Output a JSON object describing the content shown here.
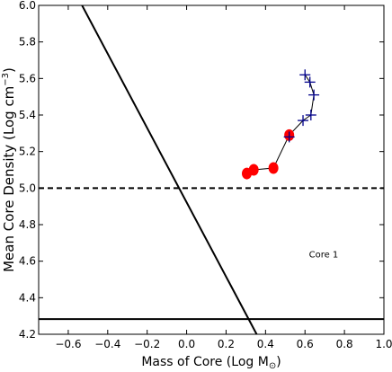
{
  "chart_data": {
    "type": "scatter",
    "title": "",
    "xlabel": "Mass of Core (Log M",
    "xlabel_sub": "⊙",
    "xlabel_close": ")",
    "ylabel": "Mean Core Density (Log cm",
    "ylabel_sup": "−3",
    "ylabel_close": ")",
    "xlim": [
      -0.75,
      1.0
    ],
    "ylim": [
      4.2,
      6.0
    ],
    "xticks": [
      -0.6,
      -0.4,
      -0.2,
      0.0,
      0.2,
      0.4,
      0.6,
      0.8,
      1.0
    ],
    "xtick_labels": [
      "−0.6",
      "−0.4",
      "−0.2",
      "0.0",
      "0.2",
      "0.4",
      "0.6",
      "0.8",
      "1.0"
    ],
    "yticks": [
      4.2,
      4.4,
      4.6,
      4.8,
      5.0,
      5.2,
      5.4,
      5.6,
      5.8,
      6.0
    ],
    "ytick_labels": [
      "4.2",
      "4.4",
      "4.6",
      "4.8",
      "5.0",
      "5.2",
      "5.4",
      "5.6",
      "5.8",
      "6.0"
    ],
    "grid": false,
    "annotation": "Core 1",
    "annotation_pos": [
      0.62,
      4.62
    ],
    "reference_lines": [
      {
        "kind": "dashed",
        "points": [
          [
            -0.75,
            5.0
          ],
          [
            1.0,
            5.0
          ]
        ]
      },
      {
        "kind": "solid",
        "points": [
          [
            -0.75,
            4.283
          ],
          [
            1.0,
            4.283
          ]
        ]
      },
      {
        "kind": "solid",
        "points": [
          [
            -0.53,
            6.0
          ],
          [
            0.355,
            4.2
          ]
        ]
      }
    ],
    "series": [
      {
        "marker": "circle",
        "color": "#ff0000",
        "points": [
          [
            0.305,
            5.08
          ],
          [
            0.34,
            5.1
          ],
          [
            0.44,
            5.11
          ],
          [
            0.52,
            5.29
          ]
        ]
      },
      {
        "marker": "plus",
        "color": "#00008b",
        "points": [
          [
            0.52,
            5.28
          ],
          [
            0.59,
            5.37
          ],
          [
            0.63,
            5.4
          ],
          [
            0.645,
            5.51
          ],
          [
            0.625,
            5.58
          ],
          [
            0.6,
            5.62
          ]
        ]
      }
    ],
    "connector_path": [
      [
        0.305,
        5.08
      ],
      [
        0.34,
        5.1
      ],
      [
        0.44,
        5.11
      ],
      [
        0.52,
        5.29
      ],
      [
        0.59,
        5.37
      ],
      [
        0.63,
        5.4
      ],
      [
        0.645,
        5.51
      ],
      [
        0.625,
        5.58
      ],
      [
        0.6,
        5.62
      ]
    ]
  }
}
